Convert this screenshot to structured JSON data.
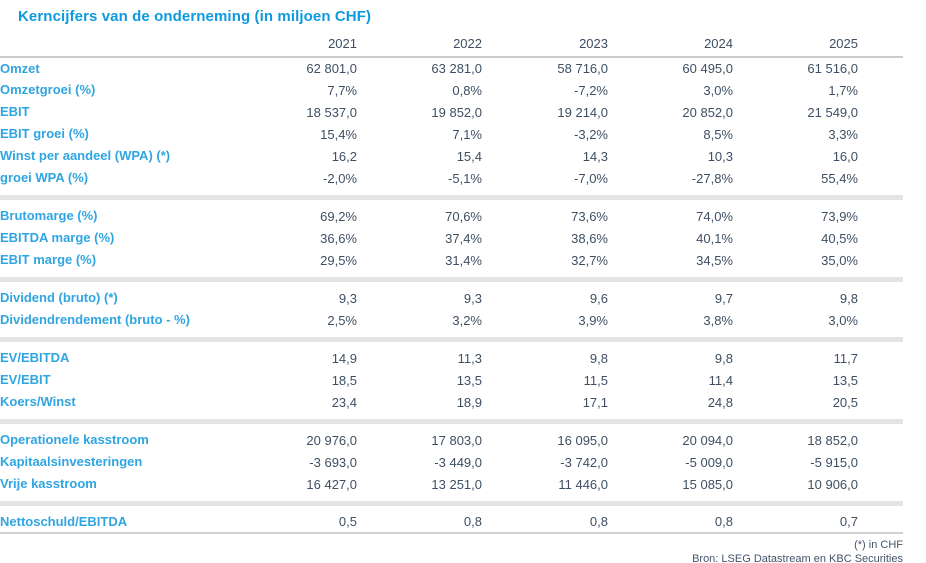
{
  "title": "Kerncijfers van de onderneming (in miljoen CHF)",
  "columns": [
    "2021",
    "2022",
    "2023",
    "2024",
    "2025"
  ],
  "sections": [
    {
      "rows": [
        {
          "label": "Omzet",
          "values": [
            "62 801,0",
            "63 281,0",
            "58 716,0",
            "60 495,0",
            "61 516,0"
          ]
        },
        {
          "label": "Omzetgroei (%)",
          "values": [
            "7,7%",
            "0,8%",
            "-7,2%",
            "3,0%",
            "1,7%"
          ]
        },
        {
          "label": "EBIT",
          "values": [
            "18 537,0",
            "19 852,0",
            "19 214,0",
            "20 852,0",
            "21 549,0"
          ]
        },
        {
          "label": "EBIT groei (%)",
          "values": [
            "15,4%",
            "7,1%",
            "-3,2%",
            "8,5%",
            "3,3%"
          ]
        },
        {
          "label": "Winst per aandeel (WPA) (*)",
          "values": [
            "16,2",
            "15,4",
            "14,3",
            "10,3",
            "16,0"
          ]
        },
        {
          "label": "groei WPA (%)",
          "values": [
            "-2,0%",
            "-5,1%",
            "-7,0%",
            "-27,8%",
            "55,4%"
          ]
        }
      ]
    },
    {
      "rows": [
        {
          "label": "Brutomarge (%)",
          "values": [
            "69,2%",
            "70,6%",
            "73,6%",
            "74,0%",
            "73,9%"
          ]
        },
        {
          "label": "EBITDA marge (%)",
          "values": [
            "36,6%",
            "37,4%",
            "38,6%",
            "40,1%",
            "40,5%"
          ]
        },
        {
          "label": "EBIT marge (%)",
          "values": [
            "29,5%",
            "31,4%",
            "32,7%",
            "34,5%",
            "35,0%"
          ]
        }
      ]
    },
    {
      "rows": [
        {
          "label": "Dividend (bruto) (*)",
          "values": [
            "9,3",
            "9,3",
            "9,6",
            "9,7",
            "9,8"
          ]
        },
        {
          "label": "Dividendrendement (bruto - %)",
          "values": [
            "2,5%",
            "3,2%",
            "3,9%",
            "3,8%",
            "3,0%"
          ]
        }
      ]
    },
    {
      "rows": [
        {
          "label": "EV/EBITDA",
          "values": [
            "14,9",
            "11,3",
            "9,8",
            "9,8",
            "11,7"
          ]
        },
        {
          "label": "EV/EBIT",
          "values": [
            "18,5",
            "13,5",
            "11,5",
            "11,4",
            "13,5"
          ]
        },
        {
          "label": "Koers/Winst",
          "values": [
            "23,4",
            "18,9",
            "17,1",
            "24,8",
            "20,5"
          ]
        }
      ]
    },
    {
      "rows": [
        {
          "label": "Operationele kasstroom",
          "values": [
            "20 976,0",
            "17 803,0",
            "16 095,0",
            "20 094,0",
            "18 852,0"
          ]
        },
        {
          "label": "Kapitaalsinvesteringen",
          "values": [
            "-3 693,0",
            "-3 449,0",
            "-3 742,0",
            "-5 009,0",
            "-5 915,0"
          ]
        },
        {
          "label": "Vrije kasstroom",
          "values": [
            "16 427,0",
            "13 251,0",
            "11 446,0",
            "15 085,0",
            "10 906,0"
          ]
        }
      ]
    },
    {
      "rows": [
        {
          "label": "Nettoschuld/EBITDA",
          "values": [
            "0,5",
            "0,8",
            "0,8",
            "0,8",
            "0,7"
          ]
        }
      ]
    }
  ],
  "footnotes": [
    "(*) in CHF",
    "Bron: LSEG Datastream en KBC Securities"
  ],
  "colors": {
    "title_blue": "#0d9ade",
    "label_blue": "#2fa5e1",
    "value_slate": "#3e4f63",
    "divider_gray": "#e4e4e4",
    "line_gray": "#c9cdd0"
  }
}
